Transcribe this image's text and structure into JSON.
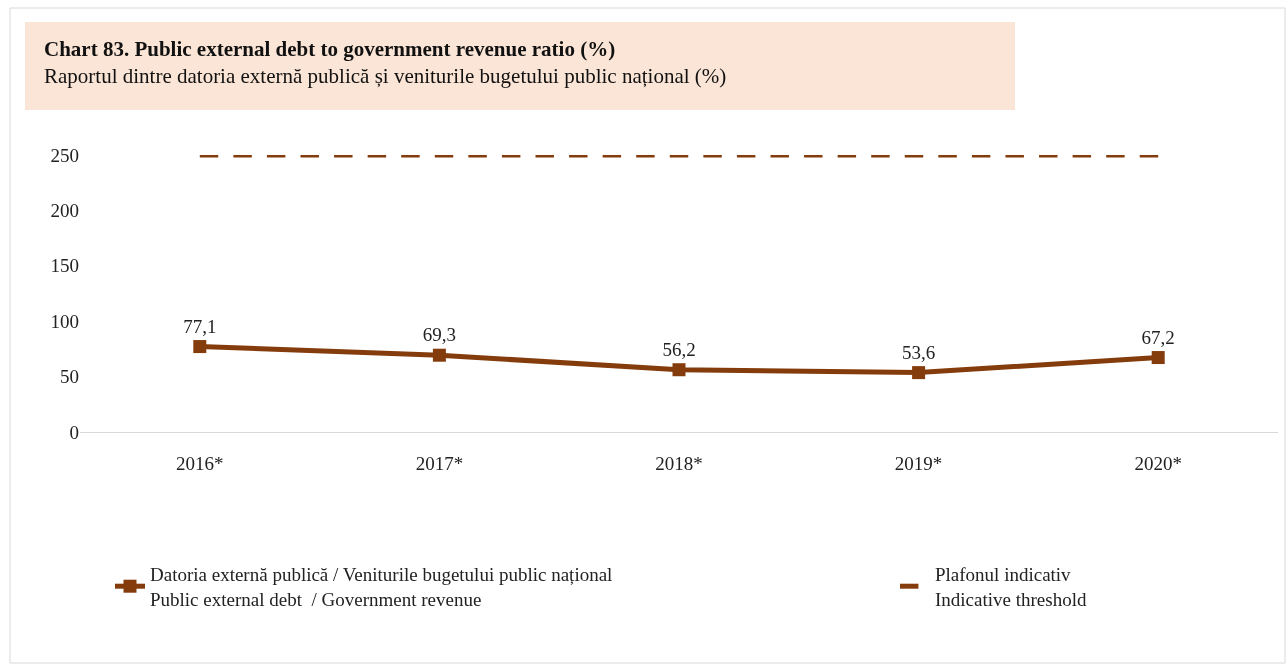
{
  "chart_data": {
    "type": "line",
    "title": "Chart 83. Public external debt to government revenue ratio (%)",
    "subtitle": "Raportul dintre datoria externă publică și veniturile bugetului public național (%)",
    "categories": [
      "2016*",
      "2017*",
      "2018*",
      "2019*",
      "2020*"
    ],
    "series": [
      {
        "name": "Datoria externă publică / Veniturile bugetului public național\nPublic external debt  / Government revenue",
        "color": "#843c0c",
        "values": [
          77.1,
          69.3,
          56.2,
          53.6,
          67.2
        ],
        "value_labels": [
          "77,1",
          "69,3",
          "56,2",
          "53,6",
          "67,2"
        ],
        "marker": "square",
        "line_style": "solid"
      },
      {
        "name": "Plafonul indicativ\nIndicative threshold",
        "color": "#843c0c",
        "values": [
          250,
          250,
          250,
          250,
          250
        ],
        "marker": "none",
        "line_style": "dashed"
      }
    ],
    "ylim": [
      0,
      250
    ],
    "yticks": [
      0,
      50,
      100,
      150,
      200,
      250
    ],
    "legend": "bottom"
  }
}
